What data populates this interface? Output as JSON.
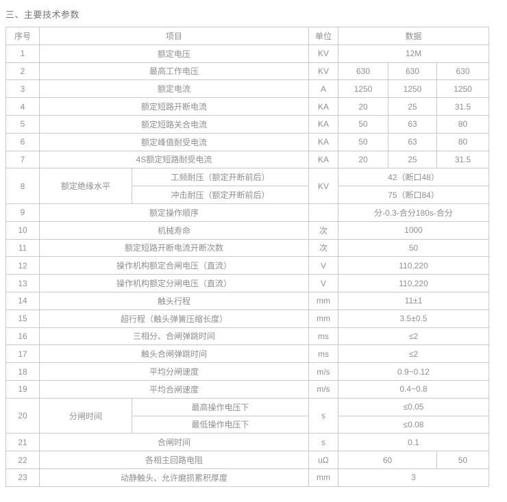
{
  "page": {
    "title": "三、主要技术参数"
  },
  "colors": {
    "border": "#c8c8c8",
    "outer_border": "#a9a9a9",
    "text": "#8f8f8f",
    "title_text": "#757575",
    "background": "#ffffff"
  },
  "table": {
    "headers": {
      "no": "序号",
      "item": "项目",
      "unit": "单位",
      "data": "数据"
    },
    "rows": [
      {
        "no": "1",
        "item": "额定电压",
        "unit": "KV",
        "cells": [
          {
            "text": "12M",
            "colspan": 3
          }
        ]
      },
      {
        "no": "2",
        "item": "最高工作电压",
        "unit": "KV",
        "cells": [
          {
            "text": "630"
          },
          {
            "text": "630"
          },
          {
            "text": "630"
          }
        ]
      },
      {
        "no": "3",
        "item": "额定电流",
        "unit": "A",
        "cells": [
          {
            "text": "1250"
          },
          {
            "text": "1250"
          },
          {
            "text": "1250"
          }
        ]
      },
      {
        "no": "4",
        "item": "额定短路开断电流",
        "unit": "KA",
        "cells": [
          {
            "text": "20"
          },
          {
            "text": "25"
          },
          {
            "text": "31.5"
          }
        ]
      },
      {
        "no": "5",
        "item": "额定短路关合电流",
        "unit": "KA",
        "cells": [
          {
            "text": "50"
          },
          {
            "text": "63"
          },
          {
            "text": "80"
          }
        ]
      },
      {
        "no": "6",
        "item": "额定峰值耐受电流",
        "unit": "KA",
        "cells": [
          {
            "text": "50"
          },
          {
            "text": "63"
          },
          {
            "text": "80"
          }
        ]
      },
      {
        "no": "7",
        "item": "4S额定短路耐受电流",
        "unit": "KA",
        "cells": [
          {
            "text": "20"
          },
          {
            "text": "25"
          },
          {
            "text": "31.5"
          }
        ]
      },
      {
        "no": "8",
        "group": "额定绝缘水平",
        "unit": "KV",
        "subrows": [
          {
            "item": "工频耐压（额定开断前后）",
            "value": "42（断口48）"
          },
          {
            "item": "冲击耐压（额定开断前后）",
            "value": "75（断口84）"
          }
        ]
      },
      {
        "no": "9",
        "item": "额定操作顺序",
        "unit": "",
        "cells": [
          {
            "text": "分-0.3-合分180s-合分",
            "colspan": 3
          }
        ]
      },
      {
        "no": "10",
        "item": "机械寿命",
        "unit": "次",
        "cells": [
          {
            "text": "1000",
            "colspan": 3
          }
        ]
      },
      {
        "no": "11",
        "item": "额定短路开断电流开断次数",
        "unit": "次",
        "cells": [
          {
            "text": "50",
            "colspan": 3
          }
        ]
      },
      {
        "no": "12",
        "item": "操作机构额定合闸电压（直流）",
        "unit": "V",
        "cells": [
          {
            "text": "110,220",
            "colspan": 3
          }
        ]
      },
      {
        "no": "13",
        "item": "操作机构额定分闸电压（直流）",
        "unit": "V",
        "cells": [
          {
            "text": "110,220",
            "colspan": 3
          }
        ]
      },
      {
        "no": "14",
        "item": "触头行程",
        "unit": "mm",
        "cells": [
          {
            "text": "11±1",
            "colspan": 3
          }
        ]
      },
      {
        "no": "15",
        "item": "超行程（触头弹簧压缩长度）",
        "unit": "mm",
        "cells": [
          {
            "text": "3.5±0.5",
            "colspan": 3
          }
        ]
      },
      {
        "no": "16",
        "item": "三相分、合闸弹跳时间",
        "unit": "ms",
        "cells": [
          {
            "text": "≤2",
            "colspan": 3
          }
        ]
      },
      {
        "no": "17",
        "item": "触头合闸弹跳时间",
        "unit": "ms",
        "cells": [
          {
            "text": "≤2",
            "colspan": 3
          }
        ]
      },
      {
        "no": "18",
        "item": "平均分闸速度",
        "unit": "m/s",
        "cells": [
          {
            "text": "0.9~0.12",
            "colspan": 3
          }
        ]
      },
      {
        "no": "19",
        "item": "平均合闸速度",
        "unit": "m/s",
        "cells": [
          {
            "text": "0.4~0.8",
            "colspan": 3
          }
        ]
      },
      {
        "no": "20",
        "group": "分闸时间",
        "unit": "s",
        "subrows": [
          {
            "item": "最高操作电压下",
            "value": "≤0.05"
          },
          {
            "item": "最低操作电压下",
            "value": "≤0.08"
          }
        ]
      },
      {
        "no": "21",
        "item": "合闸时间",
        "unit": "s",
        "cells": [
          {
            "text": "0.1",
            "colspan": 3
          }
        ]
      },
      {
        "no": "22",
        "item": "各相主回路电阻",
        "unit": "uΩ",
        "cells": [
          {
            "text": "60",
            "colspan": 2
          },
          {
            "text": "50"
          }
        ]
      },
      {
        "no": "23",
        "item": "动静触头、允许磨损累积厚度",
        "unit": "mm",
        "cells": [
          {
            "text": "3",
            "colspan": 3
          }
        ]
      }
    ]
  }
}
